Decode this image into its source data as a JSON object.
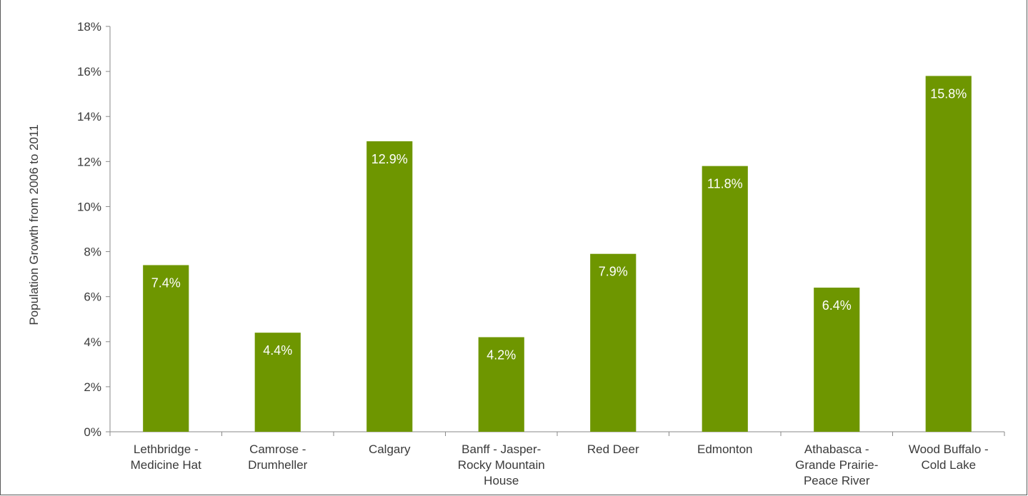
{
  "chart_data": {
    "type": "bar",
    "categories": [
      [
        "Lethbridge -",
        "Medicine Hat"
      ],
      [
        "Camrose -",
        "Drumheller"
      ],
      [
        "Calgary"
      ],
      [
        "Banff - Jasper-",
        "Rocky Mountain",
        "House"
      ],
      [
        "Red Deer"
      ],
      [
        "Edmonton"
      ],
      [
        "Athabasca -",
        "Grande Prairie-",
        "Peace River"
      ],
      [
        "Wood Buffalo -",
        "Cold Lake"
      ]
    ],
    "values": [
      7.4,
      4.4,
      12.9,
      4.2,
      7.9,
      11.8,
      6.4,
      15.8
    ],
    "data_labels": [
      "7.4%",
      "4.4%",
      "12.9%",
      "4.2%",
      "7.9%",
      "11.8%",
      "6.4%",
      "15.8%"
    ],
    "ylabel": "Population Growth from 2006 to 2011",
    "ylim": [
      0,
      18
    ],
    "yticks": [
      0,
      2,
      4,
      6,
      8,
      10,
      12,
      14,
      16,
      18
    ],
    "ytick_labels": [
      "0%",
      "2%",
      "4%",
      "6%",
      "8%",
      "10%",
      "12%",
      "14%",
      "16%",
      "18%"
    ],
    "bar_color": "#6e9600",
    "label_color": "#ffffff",
    "grid": false,
    "legend": "none"
  }
}
